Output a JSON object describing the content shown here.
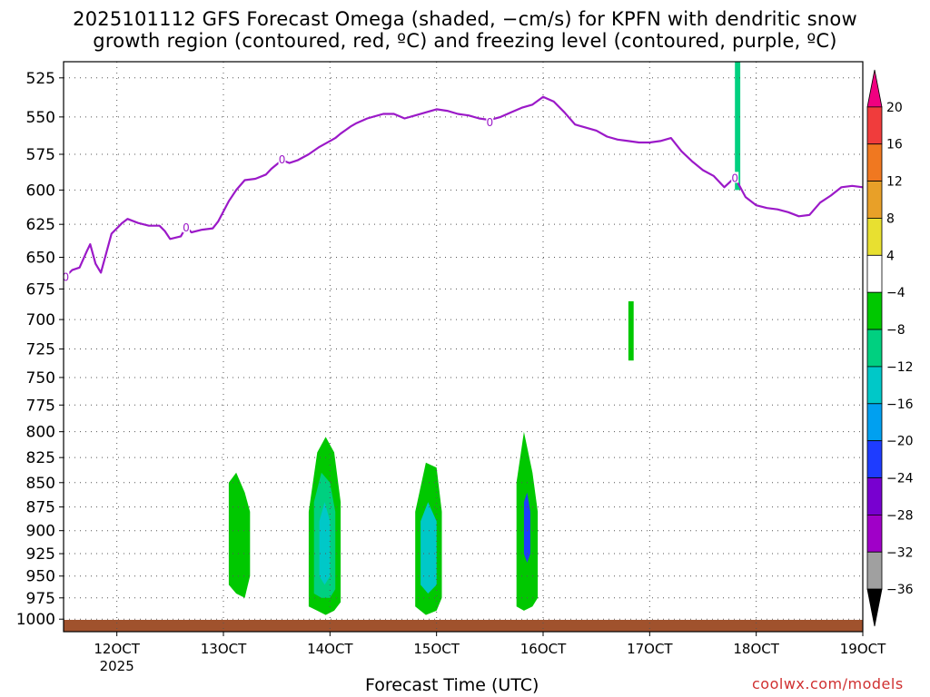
{
  "chart_data": {
    "type": "heatmap",
    "title_line1": "2025101112 GFS Forecast Omega (shaded, −cm/s) for KPFN with dendritic snow",
    "title_line2": "growth region (contoured, red, ºC) and freezing level (contoured, purple, ºC)",
    "xlabel": "Forecast Time (UTC)",
    "credit": "coolwx.com/models",
    "x_range": [
      11.5,
      19.0
    ],
    "y_range": [
      1015,
      515
    ],
    "y_ticks": [
      525,
      550,
      575,
      600,
      625,
      650,
      675,
      700,
      725,
      750,
      775,
      800,
      825,
      850,
      875,
      900,
      925,
      950,
      975,
      1000
    ],
    "y_tick_labels": [
      "525",
      "550",
      "575",
      "600",
      "625",
      "650",
      "675",
      "700",
      "725",
      "750",
      "775",
      "800",
      "825",
      "850",
      "875",
      "900",
      "925",
      "950",
      "975",
      "1000"
    ],
    "x_ticks": [
      12,
      13,
      14,
      15,
      16,
      17,
      18,
      19
    ],
    "x_tick_labels": [
      "12OCT",
      "13OCT",
      "14OCT",
      "15OCT",
      "16OCT",
      "17OCT",
      "18OCT",
      "19OCT"
    ],
    "year_label": "2025",
    "colorbar": {
      "labels": [
        "20",
        "16",
        "12",
        "8",
        "4",
        "−4",
        "−8",
        "−12",
        "−16",
        "−20",
        "−24",
        "−28",
        "−32",
        "−36"
      ],
      "colors": [
        "#f00080",
        "#f03c3c",
        "#f07820",
        "#e8a028",
        "#e8e030",
        "#ffffff",
        "#00c800",
        "#00d080",
        "#00c8c8",
        "#00a0f0",
        "#1e3cff",
        "#7800d0",
        "#a000c8",
        "#a0a0a0",
        "#000000"
      ]
    },
    "freezing_level": {
      "label": "0",
      "color": "#9b19c8",
      "label_positions": [
        [
          11.52,
          665
        ],
        [
          12.65,
          627
        ],
        [
          13.55,
          578
        ],
        [
          15.5,
          553
        ],
        [
          17.8,
          591
        ]
      ],
      "points": [
        [
          11.52,
          665
        ],
        [
          11.58,
          660
        ],
        [
          11.65,
          658
        ],
        [
          11.72,
          645
        ],
        [
          11.75,
          640
        ],
        [
          11.8,
          655
        ],
        [
          11.85,
          662
        ],
        [
          11.9,
          647
        ],
        [
          11.95,
          632
        ],
        [
          12.05,
          624
        ],
        [
          12.1,
          621
        ],
        [
          12.2,
          624
        ],
        [
          12.3,
          626
        ],
        [
          12.4,
          626
        ],
        [
          12.45,
          630
        ],
        [
          12.5,
          636
        ],
        [
          12.6,
          634
        ],
        [
          12.65,
          627
        ],
        [
          12.7,
          631
        ],
        [
          12.8,
          629
        ],
        [
          12.9,
          628
        ],
        [
          12.95,
          623
        ],
        [
          13.05,
          608
        ],
        [
          13.12,
          600
        ],
        [
          13.2,
          593
        ],
        [
          13.3,
          592
        ],
        [
          13.4,
          589
        ],
        [
          13.45,
          585
        ],
        [
          13.55,
          579
        ],
        [
          13.62,
          581
        ],
        [
          13.7,
          579
        ],
        [
          13.8,
          575
        ],
        [
          13.9,
          570
        ],
        [
          14.0,
          566
        ],
        [
          14.05,
          564
        ],
        [
          14.1,
          561
        ],
        [
          14.2,
          556
        ],
        [
          14.25,
          554
        ],
        [
          14.35,
          551
        ],
        [
          14.5,
          548
        ],
        [
          14.6,
          548
        ],
        [
          14.7,
          551
        ],
        [
          14.8,
          549
        ],
        [
          14.9,
          547
        ],
        [
          15.0,
          545
        ],
        [
          15.1,
          546
        ],
        [
          15.2,
          548
        ],
        [
          15.3,
          549
        ],
        [
          15.4,
          551
        ],
        [
          15.5,
          552
        ],
        [
          15.6,
          550
        ],
        [
          15.7,
          547
        ],
        [
          15.8,
          544
        ],
        [
          15.9,
          542
        ],
        [
          16.0,
          537
        ],
        [
          16.1,
          540
        ],
        [
          16.2,
          547
        ],
        [
          16.3,
          555
        ],
        [
          16.4,
          557
        ],
        [
          16.5,
          559
        ],
        [
          16.6,
          563
        ],
        [
          16.7,
          565
        ],
        [
          16.8,
          566
        ],
        [
          16.9,
          567
        ],
        [
          17.0,
          567
        ],
        [
          17.1,
          566
        ],
        [
          17.2,
          564
        ],
        [
          17.3,
          573
        ],
        [
          17.4,
          580
        ],
        [
          17.5,
          586
        ],
        [
          17.6,
          590
        ],
        [
          17.7,
          598
        ],
        [
          17.8,
          591
        ],
        [
          17.9,
          605
        ],
        [
          18.0,
          611
        ],
        [
          18.1,
          613
        ],
        [
          18.2,
          614
        ],
        [
          18.3,
          616
        ],
        [
          18.4,
          619
        ],
        [
          18.5,
          618
        ],
        [
          18.6,
          609
        ],
        [
          18.7,
          604
        ],
        [
          18.8,
          598
        ],
        [
          18.9,
          597
        ],
        [
          19.0,
          598
        ]
      ]
    },
    "shaded_regions": [
      {
        "name": "ascent-cell-1305",
        "value": -8,
        "color": "#00c800",
        "x": [
          13.05,
          13.12,
          13.2,
          13.25
        ],
        "p": [
          [
            850,
            960
          ],
          [
            840,
            970
          ],
          [
            860,
            975
          ],
          [
            880,
            950
          ]
        ]
      },
      {
        "name": "ascent-cell-1400-outer",
        "value": -8,
        "color": "#00c800",
        "x": [
          13.8,
          13.88,
          13.96,
          14.04,
          14.1
        ],
        "p": [
          [
            880,
            985
          ],
          [
            820,
            990
          ],
          [
            805,
            995
          ],
          [
            820,
            990
          ],
          [
            870,
            980
          ]
        ]
      },
      {
        "name": "ascent-cell-1400-mid",
        "value": -12,
        "color": "#00d080",
        "x": [
          13.85,
          13.92,
          14.0,
          14.05
        ],
        "p": [
          [
            870,
            970
          ],
          [
            840,
            975
          ],
          [
            850,
            975
          ],
          [
            880,
            965
          ]
        ]
      },
      {
        "name": "ascent-cell-1400-core",
        "value": -16,
        "color": "#00c8c8",
        "x": [
          13.9,
          13.95,
          14.0
        ],
        "p": [
          [
            890,
            950
          ],
          [
            870,
            960
          ],
          [
            890,
            950
          ]
        ]
      },
      {
        "name": "ascent-cell-1500-outer",
        "value": -8,
        "color": "#00c800",
        "x": [
          14.8,
          14.9,
          15.0,
          15.05
        ],
        "p": [
          [
            880,
            985
          ],
          [
            830,
            995
          ],
          [
            835,
            990
          ],
          [
            880,
            975
          ]
        ]
      },
      {
        "name": "ascent-cell-1500-core",
        "value": -16,
        "color": "#00c8c8",
        "x": [
          14.85,
          14.92,
          15.0
        ],
        "p": [
          [
            890,
            960
          ],
          [
            870,
            970
          ],
          [
            890,
            960
          ]
        ]
      },
      {
        "name": "ascent-cell-1600-outer",
        "value": -8,
        "color": "#00c800",
        "x": [
          15.75,
          15.82,
          15.9,
          15.95
        ],
        "p": [
          [
            850,
            985
          ],
          [
            800,
            990
          ],
          [
            840,
            985
          ],
          [
            880,
            975
          ]
        ]
      },
      {
        "name": "ascent-cell-1600-core",
        "value": -20,
        "color": "#1e3cff",
        "x": [
          15.82,
          15.85,
          15.88
        ],
        "p": [
          [
            870,
            925
          ],
          [
            860,
            935
          ],
          [
            880,
            925
          ]
        ]
      },
      {
        "name": "ascent-strip-1700",
        "value": -8,
        "color": "#00c800",
        "x": [
          16.8,
          16.85
        ],
        "p": [
          [
            685,
            735
          ],
          [
            685,
            735
          ]
        ]
      },
      {
        "name": "ascent-strip-1800",
        "value": -12,
        "color": "#00d080",
        "x": [
          17.8,
          17.85
        ],
        "p": [
          [
            515,
            600
          ],
          [
            515,
            600
          ]
        ]
      }
    ]
  }
}
